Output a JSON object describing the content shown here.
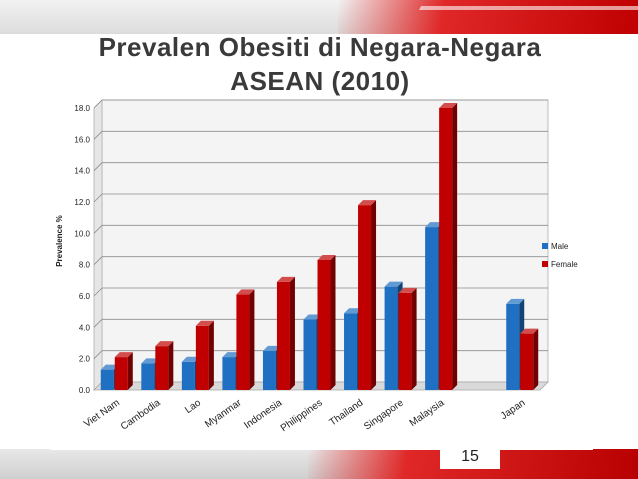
{
  "slide": {
    "title_line1": "Prevalen Obesiti di Negara-Negara",
    "title_line2": "ASEAN (2010)",
    "page_number": "15"
  },
  "chart_data": {
    "type": "bar",
    "title": "",
    "xlabel": "",
    "ylabel": "Prevalence %",
    "ylim": [
      0,
      18
    ],
    "yticks": [
      0,
      2,
      4,
      6,
      8,
      10,
      12,
      14,
      16,
      18
    ],
    "ytick_labels": [
      "0.0",
      "2.0",
      "4.0",
      "6.0",
      "8.0",
      "10.0",
      "12.0",
      "14.0",
      "16.0",
      "18.0"
    ],
    "grid": true,
    "legend": "right",
    "categories": [
      "Viet Nam",
      "Cambodia",
      "Lao",
      "Myanmar",
      "Indonesia",
      "Philippines",
      "Thailand",
      "Singapore",
      "Malaysia",
      "",
      "Japan"
    ],
    "series": [
      {
        "name": "Male",
        "color": "#1f6fc2",
        "values": [
          1.3,
          1.7,
          1.8,
          2.1,
          2.5,
          4.5,
          4.9,
          6.6,
          10.4,
          null,
          5.5
        ]
      },
      {
        "name": "Female",
        "color": "#c00000",
        "values": [
          2.1,
          2.8,
          4.1,
          6.1,
          6.9,
          8.3,
          11.8,
          6.2,
          18.0,
          null,
          3.6
        ]
      }
    ]
  }
}
